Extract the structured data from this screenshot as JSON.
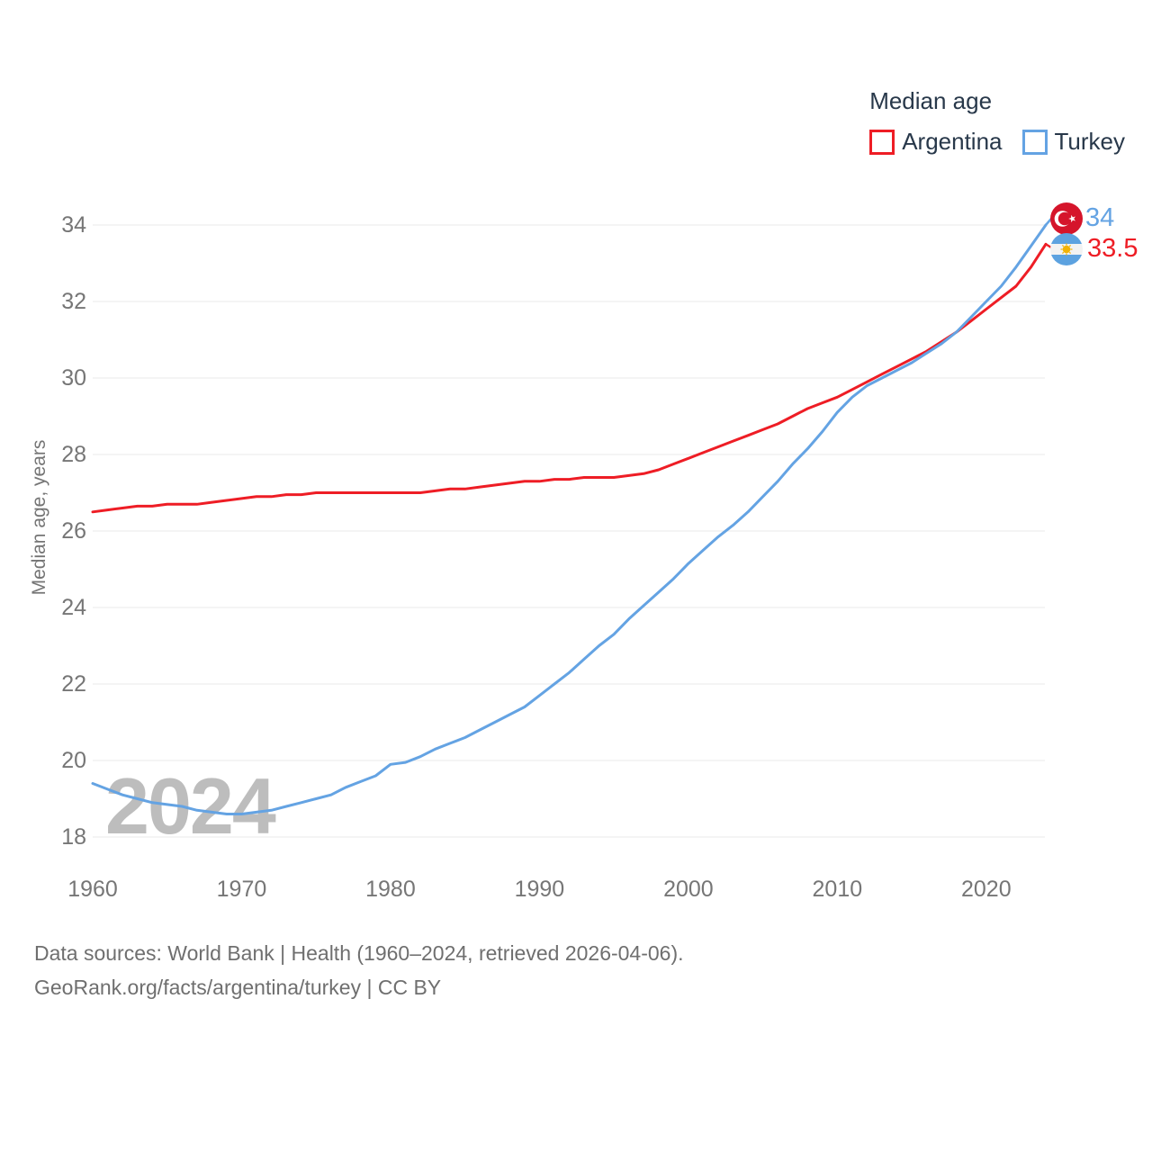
{
  "legend": {
    "title": "Median age",
    "items": [
      {
        "label": "Argentina",
        "color": "#ee1d25"
      },
      {
        "label": "Turkey",
        "color": "#64a3e3"
      }
    ]
  },
  "watermark": "2024",
  "y_axis_title": "Median age, years",
  "end_labels": {
    "turkey": {
      "value": "34",
      "color": "#64a3e3",
      "flag": "turkey-flag"
    },
    "argentina": {
      "value": "33.5",
      "color": "#ee1d25",
      "flag": "argentina-flag"
    }
  },
  "footer": {
    "line1": "Data sources: World Bank | Health (1960–2024, retrieved 2026-04-06).",
    "line2": "GeoRank.org/facts/argentina/turkey | CC BY"
  },
  "colors": {
    "grid": "#e9e9e9",
    "tick_text": "#767676",
    "dark_text": "#28384a",
    "footer_text": "#6f6f6f",
    "watermark": "#bdbdbd"
  },
  "flags": {
    "turkey": {
      "bg": "#d5152b",
      "crescent": "#ffffff"
    },
    "argentina": {
      "band": "#5ca2e0",
      "middle": "#f2f2f2",
      "sun": "#f2b305"
    }
  },
  "chart_data": {
    "type": "line",
    "title": "Median age",
    "xlabel": "",
    "ylabel": "Median age, years",
    "xlim": [
      1960,
      2024
    ],
    "ylim": [
      18,
      34
    ],
    "grid": "horizontal",
    "legend_position": "top-right",
    "xticks": [
      1960,
      1970,
      1980,
      1990,
      2000,
      2010,
      2020
    ],
    "yticks": [
      18,
      20,
      22,
      24,
      26,
      28,
      30,
      32,
      34
    ],
    "x": [
      1960,
      1961,
      1962,
      1963,
      1964,
      1965,
      1966,
      1967,
      1968,
      1969,
      1970,
      1971,
      1972,
      1973,
      1974,
      1975,
      1976,
      1977,
      1978,
      1979,
      1980,
      1981,
      1982,
      1983,
      1984,
      1985,
      1986,
      1987,
      1988,
      1989,
      1990,
      1991,
      1992,
      1993,
      1994,
      1995,
      1996,
      1997,
      1998,
      1999,
      2000,
      2001,
      2002,
      2003,
      2004,
      2005,
      2006,
      2007,
      2008,
      2009,
      2010,
      2011,
      2012,
      2013,
      2014,
      2015,
      2016,
      2017,
      2018,
      2019,
      2020,
      2021,
      2022,
      2023,
      2024
    ],
    "series": [
      {
        "name": "Argentina",
        "color": "#ee1d25",
        "end_value": 33.5,
        "values": [
          26.5,
          26.55,
          26.6,
          26.65,
          26.65,
          26.7,
          26.7,
          26.7,
          26.75,
          26.8,
          26.85,
          26.9,
          26.9,
          26.95,
          26.95,
          27.0,
          27.0,
          27.0,
          27.0,
          27.0,
          27.0,
          27.0,
          27.0,
          27.05,
          27.1,
          27.1,
          27.15,
          27.2,
          27.25,
          27.3,
          27.3,
          27.35,
          27.35,
          27.4,
          27.4,
          27.4,
          27.45,
          27.5,
          27.6,
          27.75,
          27.9,
          28.05,
          28.2,
          28.35,
          28.5,
          28.65,
          28.8,
          29.0,
          29.2,
          29.35,
          29.5,
          29.7,
          29.9,
          30.1,
          30.3,
          30.5,
          30.7,
          30.95,
          31.2,
          31.5,
          31.8,
          32.1,
          32.4,
          32.9,
          33.5
        ]
      },
      {
        "name": "Turkey",
        "color": "#64a3e3",
        "end_value": 34,
        "values": [
          19.4,
          19.25,
          19.1,
          19.0,
          18.9,
          18.85,
          18.8,
          18.7,
          18.65,
          18.6,
          18.6,
          18.65,
          18.7,
          18.8,
          18.9,
          19.0,
          19.1,
          19.3,
          19.45,
          19.6,
          19.9,
          19.95,
          20.1,
          20.3,
          20.45,
          20.6,
          20.8,
          21.0,
          21.2,
          21.4,
          21.7,
          22.0,
          22.3,
          22.65,
          23.0,
          23.3,
          23.7,
          24.05,
          24.4,
          24.75,
          25.15,
          25.5,
          25.85,
          26.15,
          26.5,
          26.9,
          27.3,
          27.75,
          28.15,
          28.6,
          29.1,
          29.5,
          29.8,
          30.0,
          30.2,
          30.4,
          30.65,
          30.9,
          31.2,
          31.6,
          32.0,
          32.4,
          32.9,
          33.45,
          34.0
        ]
      }
    ]
  }
}
